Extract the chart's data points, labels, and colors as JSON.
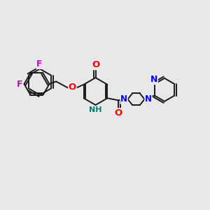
{
  "bg_color": "#e8e8e8",
  "bond_color": "#1a1a1a",
  "bond_width": 1.4,
  "atom_colors": {
    "O": "#ff0000",
    "N": "#0000ff",
    "F": "#cc00cc",
    "NH": "#008080",
    "C": "#1a1a1a"
  },
  "font_size": 8.5,
  "figsize": [
    3.0,
    3.0
  ],
  "dpi": 100
}
